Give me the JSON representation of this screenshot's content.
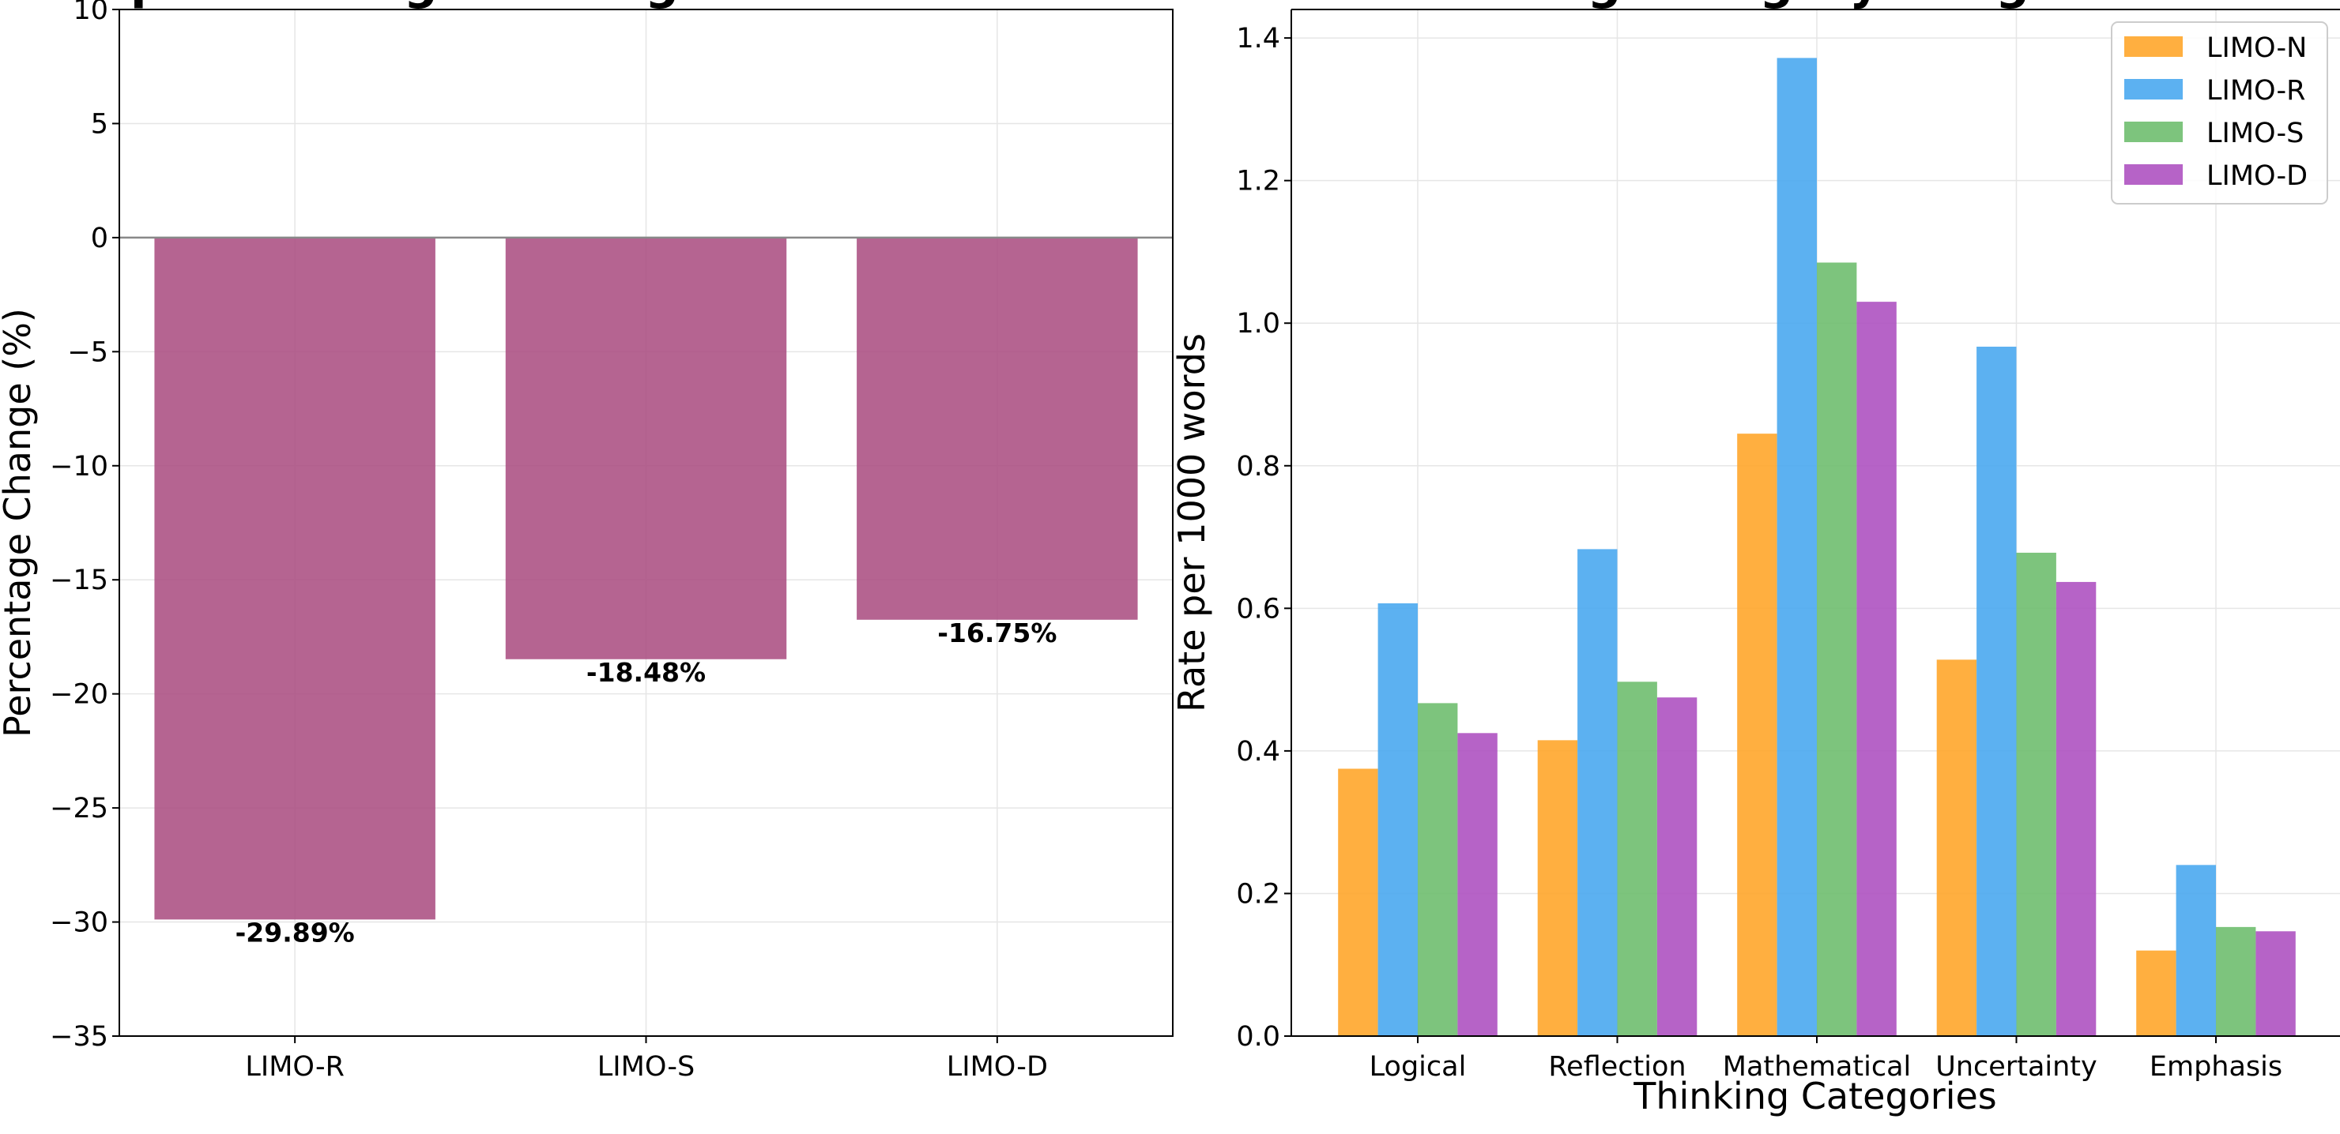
{
  "chart_data": [
    {
      "type": "bar",
      "title": "Response Length Changes vs LIMO-N",
      "xlabel": "",
      "ylabel": "Percentage Change (%)",
      "categories": [
        "LIMO-R",
        "LIMO-S",
        "LIMO-D"
      ],
      "values": [
        -29.89,
        -18.48,
        -16.75
      ],
      "value_labels": [
        "-29.89%",
        "-18.48%",
        "-16.75%"
      ],
      "ylim": [
        -35,
        10
      ],
      "yticks": [
        10,
        5,
        0,
        -5,
        -10,
        -15,
        -20,
        -25,
        -30,
        -35
      ],
      "ytick_labels": [
        "10",
        "5",
        "0",
        "−5",
        "−10",
        "−15",
        "−20",
        "−25",
        "−30",
        "−35"
      ],
      "grid": true,
      "bar_color": "#a8497e"
    },
    {
      "type": "bar",
      "title": "Thinking Category Usage Rates",
      "xlabel": "Thinking Categories",
      "ylabel": "Rate per 1000 words",
      "categories": [
        "Logical",
        "Reflection",
        "Mathematical",
        "Uncertainty",
        "Emphasis"
      ],
      "series": [
        {
          "name": "LIMO-N",
          "color": "#ffa62b",
          "values": [
            0.375,
            0.415,
            0.845,
            0.528,
            0.12
          ]
        },
        {
          "name": "LIMO-R",
          "color": "#4aa8f0",
          "values": [
            0.607,
            0.683,
            1.372,
            0.967,
            0.24
          ]
        },
        {
          "name": "LIMO-S",
          "color": "#6fbe6f",
          "values": [
            0.467,
            0.497,
            1.085,
            0.678,
            0.153
          ]
        },
        {
          "name": "LIMO-D",
          "color": "#ae52c1",
          "values": [
            0.425,
            0.475,
            1.03,
            0.637,
            0.147
          ]
        }
      ],
      "ylim": [
        0,
        1.44
      ],
      "yticks": [
        0.0,
        0.2,
        0.4,
        0.6,
        0.8,
        1.0,
        1.2,
        1.4
      ],
      "ytick_labels": [
        "0.0",
        "0.2",
        "0.4",
        "0.6",
        "0.8",
        "1.0",
        "1.2",
        "1.4"
      ],
      "grid": true,
      "legend": "top-right"
    }
  ]
}
